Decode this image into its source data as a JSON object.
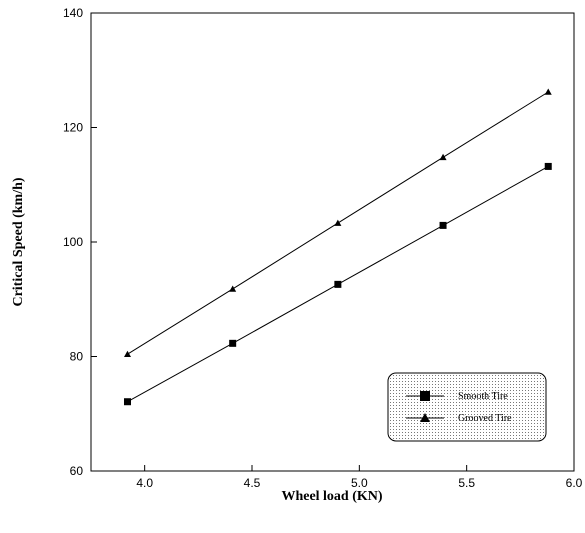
{
  "chart_data": {
    "type": "line",
    "x_label": "Wheel load (KN)",
    "y_label": "Critical Speed (km/h)",
    "x": [
      3.92,
      4.41,
      4.9,
      5.39,
      5.88
    ],
    "series": [
      {
        "name": "Smooth Tire",
        "color": "#000000",
        "marker": "square",
        "values": [
          72.1,
          82.3,
          92.6,
          102.9,
          113.2
        ]
      },
      {
        "name": "Grooved Tire",
        "color": "#000000",
        "marker": "triangle",
        "values": [
          80.4,
          91.8,
          103.3,
          114.8,
          126.2
        ]
      }
    ],
    "xlim": [
      3.75,
      6.0
    ],
    "xticks": [
      {
        "value": 4,
        "label": "4.0"
      },
      {
        "value": 4.5,
        "label": "4.5"
      },
      {
        "value": 5,
        "label": "5.0"
      },
      {
        "value": 5.5,
        "label": "5.5"
      },
      {
        "value": 6,
        "label": "6.0"
      }
    ],
    "ylim": [
      60,
      140
    ],
    "yticks": [
      60,
      80,
      100,
      120,
      140
    ],
    "grid": false,
    "legend": "lower right"
  }
}
